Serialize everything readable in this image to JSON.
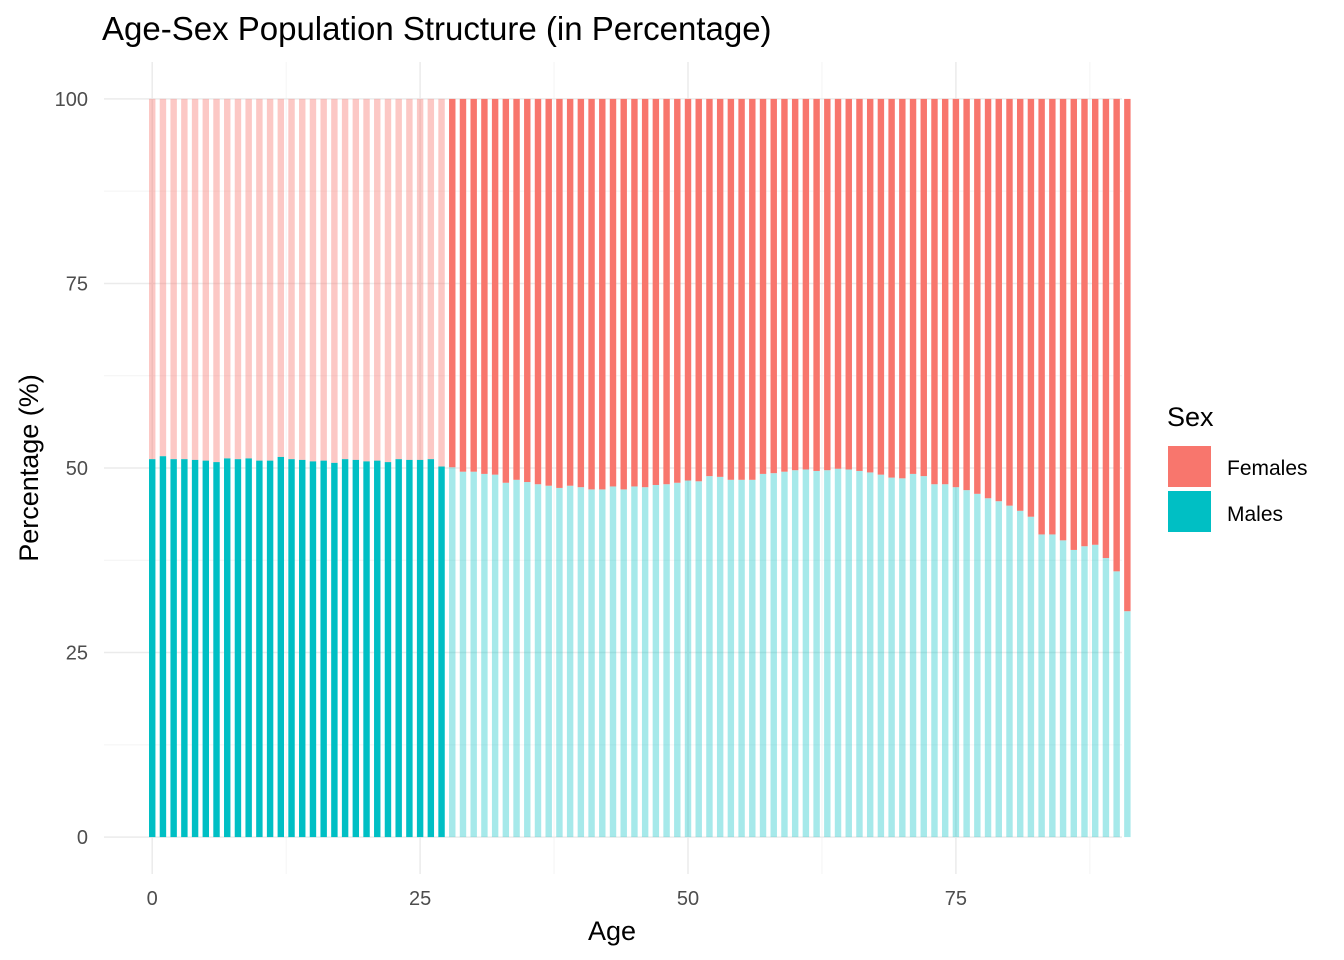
{
  "chart_data": {
    "type": "bar",
    "stacked": true,
    "title": "Age-Sex Population Structure (in Percentage)",
    "xlabel": "Age",
    "ylabel": "Percentage (%)",
    "xlim": [
      -4.5,
      90.5
    ],
    "ylim": [
      -5,
      105
    ],
    "x_ticks": [
      0,
      25,
      50,
      75
    ],
    "y_ticks": [
      0,
      25,
      50,
      75,
      100
    ],
    "grid": true,
    "highlight_ages": [
      0,
      27
    ],
    "legend": {
      "title": "Sex",
      "position": "right",
      "items": [
        {
          "label": "Females",
          "color": "#F8766D"
        },
        {
          "label": "Males",
          "color": "#00BFC4"
        }
      ]
    },
    "series": [
      {
        "name": "Males",
        "color": "#00BFC4",
        "values": [
          51.2,
          51.6,
          51.2,
          51.2,
          51.1,
          51.0,
          50.8,
          51.3,
          51.2,
          51.3,
          51.0,
          51.0,
          51.5,
          51.2,
          51.1,
          50.9,
          51.0,
          50.7,
          51.2,
          51.1,
          50.9,
          51.0,
          50.8,
          51.2,
          51.1,
          51.1,
          51.2,
          50.2,
          50.1,
          49.5,
          49.5,
          49.2,
          49.1,
          48.0,
          48.4,
          48.1,
          47.8,
          47.6,
          47.3,
          47.6,
          47.4,
          47.1,
          47.1,
          47.5,
          47.1,
          47.5,
          47.4,
          47.7,
          47.8,
          48.0,
          48.3,
          48.2,
          48.9,
          48.8,
          48.4,
          48.4,
          48.4,
          49.2,
          49.3,
          49.5,
          49.7,
          49.8,
          49.6,
          49.7,
          49.9,
          49.8,
          49.6,
          49.4,
          49.1,
          48.7,
          48.6,
          49.2,
          48.9,
          47.8,
          47.8,
          47.4,
          47.0,
          46.5,
          45.9,
          45.5,
          44.9,
          44.2,
          43.4,
          41.0,
          41.0,
          40.2,
          38.9,
          39.4,
          39.6,
          37.8,
          36.0,
          30.6
        ]
      },
      {
        "name": "Females",
        "color": "#F8766D",
        "values": [
          48.8,
          48.4,
          48.8,
          48.8,
          48.9,
          49.0,
          49.2,
          48.7,
          48.8,
          48.7,
          49.0,
          49.0,
          48.5,
          48.8,
          48.9,
          49.1,
          49.0,
          49.3,
          48.8,
          48.9,
          49.1,
          49.0,
          49.2,
          48.8,
          48.9,
          48.9,
          48.8,
          49.8,
          49.9,
          50.5,
          50.5,
          50.8,
          50.9,
          52.0,
          51.6,
          51.9,
          52.2,
          52.4,
          52.7,
          52.4,
          52.6,
          52.9,
          52.9,
          52.5,
          52.9,
          52.5,
          52.6,
          52.3,
          52.2,
          52.0,
          51.7,
          51.8,
          51.1,
          51.2,
          51.6,
          51.6,
          51.6,
          50.8,
          50.7,
          50.5,
          50.3,
          50.2,
          50.4,
          50.3,
          50.1,
          50.2,
          50.4,
          50.6,
          50.9,
          51.3,
          51.4,
          50.8,
          51.1,
          52.2,
          52.2,
          52.6,
          53.0,
          53.5,
          54.1,
          54.5,
          55.1,
          55.8,
          56.6,
          59.0,
          59.0,
          59.8,
          61.1,
          60.6,
          60.4,
          62.2,
          64.0,
          69.4
        ]
      }
    ]
  }
}
